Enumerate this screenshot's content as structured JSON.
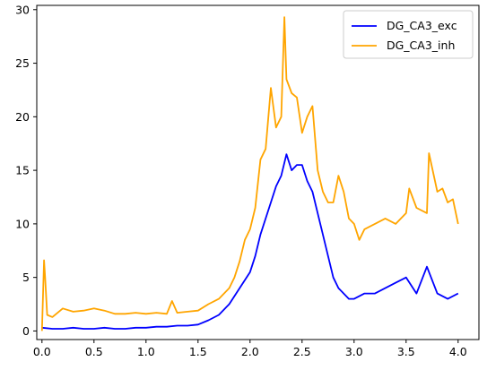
{
  "chart_data": {
    "type": "line",
    "xlim": [
      -0.05,
      4.2
    ],
    "ylim": [
      -0.8,
      30.4
    ],
    "xticks": [
      0.0,
      0.5,
      1.0,
      1.5,
      2.0,
      2.5,
      3.0,
      3.5,
      4.0
    ],
    "xtick_labels": [
      "0.0",
      "0.5",
      "1.0",
      "1.5",
      "2.0",
      "2.5",
      "3.0",
      "3.5",
      "4.0"
    ],
    "yticks": [
      0,
      5,
      10,
      15,
      20,
      25,
      30
    ],
    "ytick_labels": [
      "0",
      "5",
      "10",
      "15",
      "20",
      "25",
      "30"
    ],
    "legend_position": "top-right",
    "grid": false,
    "colors": {
      "exc": "#0000ff",
      "inh": "#ffa500"
    },
    "series": [
      {
        "name": "DG_CA3_exc",
        "color": "#0000ff",
        "x": [
          0.0,
          0.1,
          0.2,
          0.3,
          0.4,
          0.5,
          0.6,
          0.7,
          0.8,
          0.9,
          1.0,
          1.1,
          1.2,
          1.3,
          1.4,
          1.5,
          1.6,
          1.7,
          1.8,
          1.9,
          2.0,
          2.05,
          2.1,
          2.15,
          2.2,
          2.25,
          2.3,
          2.35,
          2.4,
          2.45,
          2.5,
          2.55,
          2.6,
          2.65,
          2.7,
          2.75,
          2.8,
          2.85,
          2.9,
          2.95,
          3.0,
          3.1,
          3.2,
          3.3,
          3.4,
          3.5,
          3.6,
          3.7,
          3.8,
          3.9,
          4.0
        ],
        "values": [
          0.3,
          0.2,
          0.2,
          0.3,
          0.2,
          0.2,
          0.3,
          0.2,
          0.2,
          0.3,
          0.3,
          0.4,
          0.4,
          0.5,
          0.5,
          0.6,
          1.0,
          1.5,
          2.5,
          4.0,
          5.5,
          7.0,
          9.0,
          10.5,
          12.0,
          13.5,
          14.5,
          16.5,
          15.0,
          15.5,
          15.5,
          14.0,
          13.0,
          11.0,
          9.0,
          7.0,
          5.0,
          4.0,
          3.5,
          3.0,
          3.0,
          3.5,
          3.5,
          4.0,
          4.5,
          5.0,
          3.5,
          6.0,
          3.5,
          3.0,
          3.5
        ]
      },
      {
        "name": "DG_CA3_inh",
        "color": "#ffa500",
        "x": [
          0.0,
          0.02,
          0.03,
          0.05,
          0.1,
          0.2,
          0.3,
          0.4,
          0.5,
          0.6,
          0.7,
          0.8,
          0.9,
          1.0,
          1.1,
          1.2,
          1.25,
          1.3,
          1.4,
          1.5,
          1.6,
          1.7,
          1.8,
          1.85,
          1.9,
          1.95,
          2.0,
          2.05,
          2.1,
          2.15,
          2.2,
          2.25,
          2.3,
          2.33,
          2.35,
          2.4,
          2.45,
          2.5,
          2.55,
          2.6,
          2.65,
          2.7,
          2.75,
          2.8,
          2.85,
          2.9,
          2.95,
          3.0,
          3.05,
          3.1,
          3.2,
          3.3,
          3.4,
          3.5,
          3.53,
          3.6,
          3.7,
          3.72,
          3.8,
          3.85,
          3.9,
          3.95,
          4.0
        ],
        "values": [
          0.0,
          6.6,
          5.0,
          1.5,
          1.3,
          2.1,
          1.8,
          1.9,
          2.1,
          1.9,
          1.6,
          1.6,
          1.7,
          1.6,
          1.7,
          1.6,
          2.8,
          1.7,
          1.8,
          1.9,
          2.5,
          3.0,
          4.0,
          5.0,
          6.5,
          8.5,
          9.5,
          11.5,
          16.0,
          17.0,
          22.7,
          19.0,
          20.0,
          29.3,
          23.5,
          22.2,
          21.8,
          18.5,
          20.0,
          21.0,
          15.0,
          13.0,
          12.0,
          12.0,
          14.5,
          13.0,
          10.5,
          10.0,
          8.5,
          9.5,
          10.0,
          10.5,
          10.0,
          11.0,
          13.3,
          11.5,
          11.0,
          16.6,
          13.0,
          13.3,
          12.0,
          12.3,
          10.0
        ]
      }
    ]
  }
}
